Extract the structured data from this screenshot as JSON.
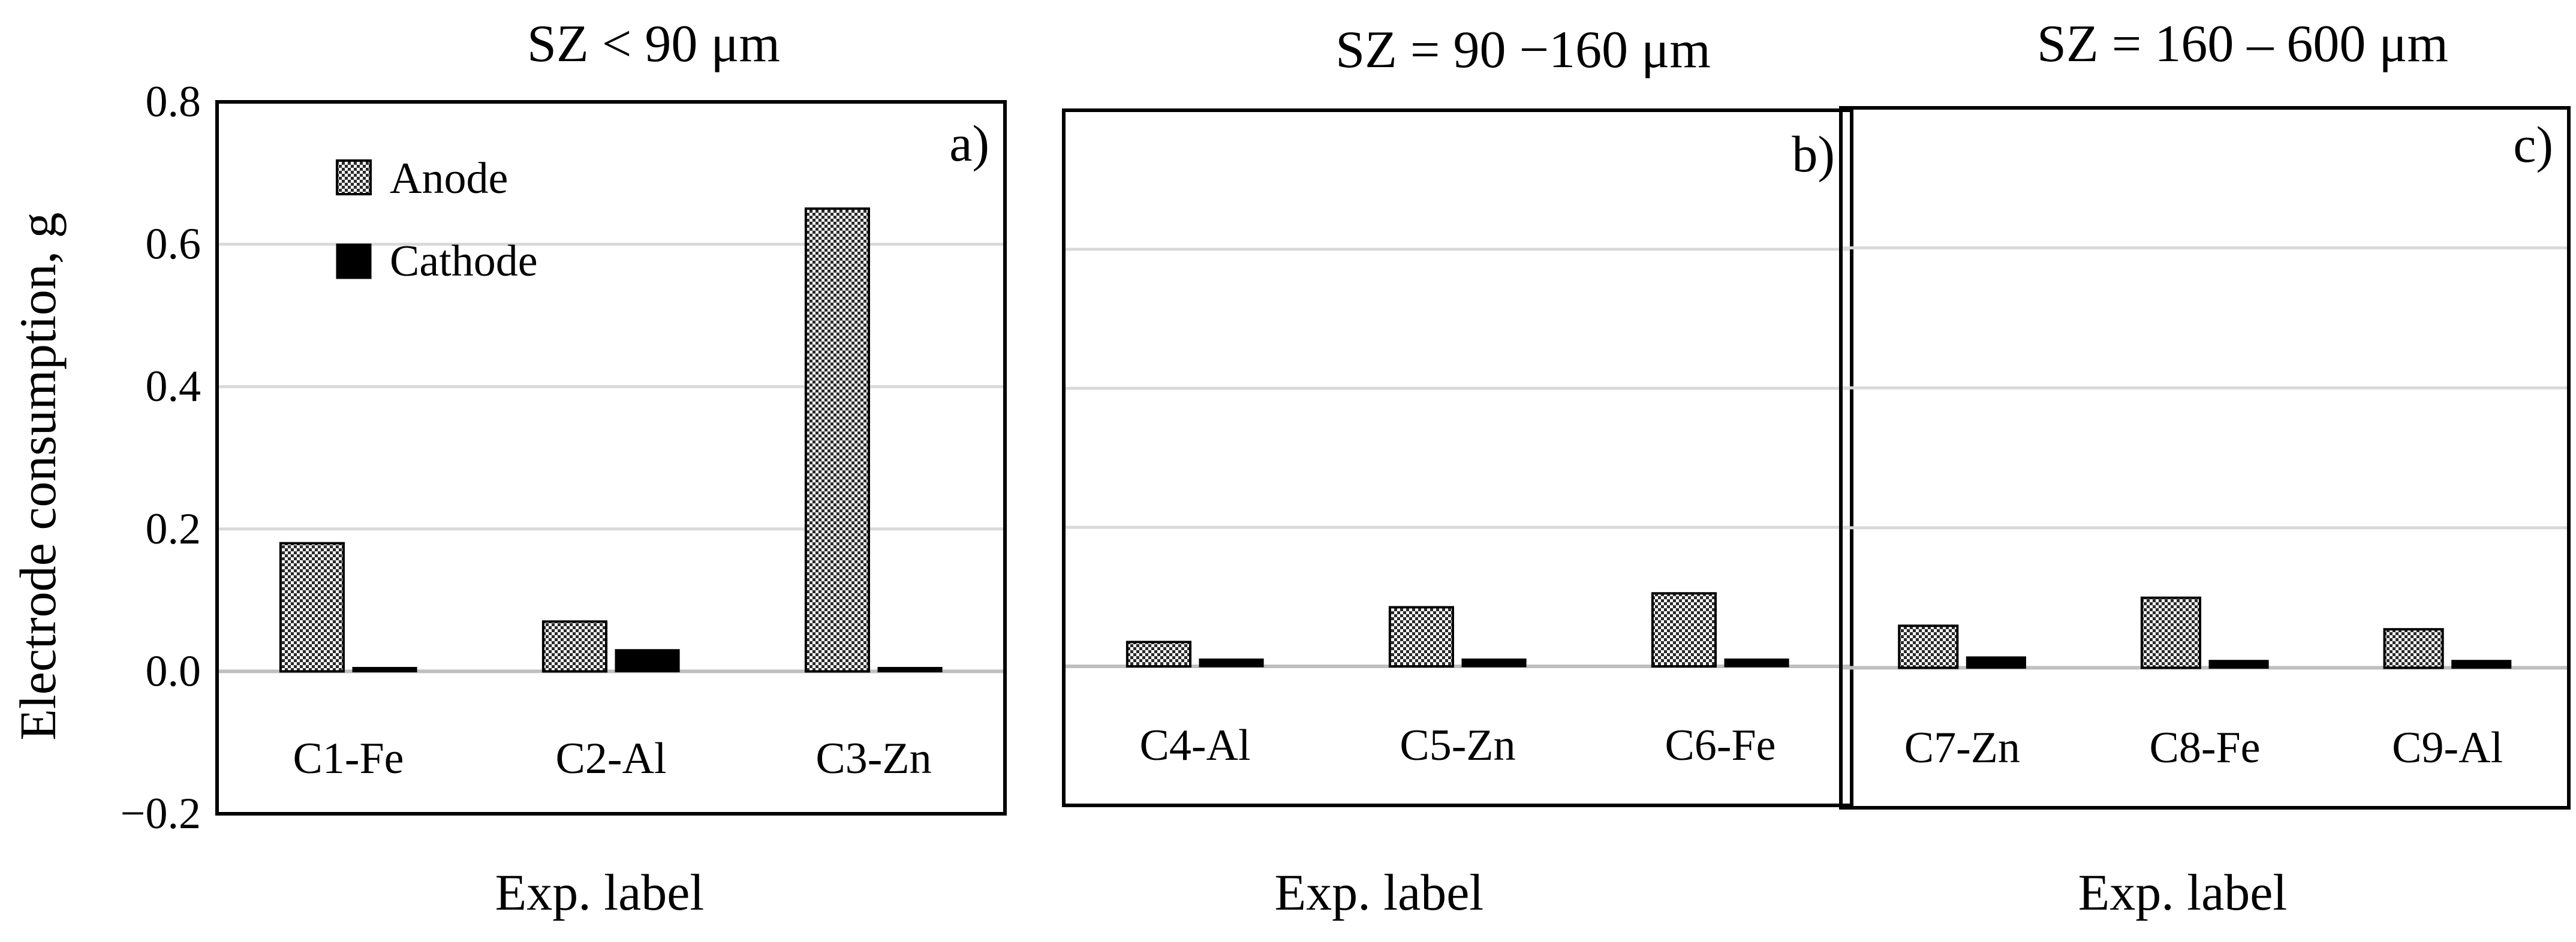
{
  "chart_data": [
    {
      "type": "bar",
      "panel": "a)",
      "title": "SZ < 90 μm",
      "xlabel": "Exp. label",
      "ylabel": "Electrode consumption, g",
      "ylim": [
        -0.2,
        0.8
      ],
      "yticks": [
        "0.8",
        "0.6",
        "0.4",
        "0.2",
        "0.0",
        "−0.2"
      ],
      "categories": [
        "C1-Fe",
        "C2-Al",
        "C3-Zn"
      ],
      "series": [
        {
          "name": "Anode",
          "values": [
            0.18,
            0.07,
            0.65
          ]
        },
        {
          "name": "Cathode",
          "values": [
            0.005,
            0.03,
            0.005
          ]
        }
      ],
      "grid": true
    },
    {
      "type": "bar",
      "panel": "b)",
      "title": "SZ = 90 −160 μm",
      "xlabel": "Exp. label",
      "ylim": [
        -0.2,
        0.8
      ],
      "categories": [
        "C4-Al",
        "C5-Zn",
        "C6-Fe"
      ],
      "series": [
        {
          "name": "Anode",
          "values": [
            0.035,
            0.085,
            0.105
          ]
        },
        {
          "name": "Cathode",
          "values": [
            0.01,
            0.01,
            0.01
          ]
        }
      ],
      "grid": true
    },
    {
      "type": "bar",
      "panel": "c)",
      "title": "SZ = 160 – 600 μm",
      "xlabel": "Exp. label",
      "ylim": [
        -0.2,
        0.8
      ],
      "categories": [
        "C7-Zn",
        "C8-Fe",
        "C9-Al"
      ],
      "series": [
        {
          "name": "Anode",
          "values": [
            0.06,
            0.1,
            0.055
          ]
        },
        {
          "name": "Cathode",
          "values": [
            0.015,
            0.01,
            0.01
          ]
        }
      ],
      "grid": true
    }
  ],
  "colors": {
    "anode_fill": "#8c8c8c",
    "cathode_fill": "#000000",
    "grid": "#d9d9d9"
  }
}
